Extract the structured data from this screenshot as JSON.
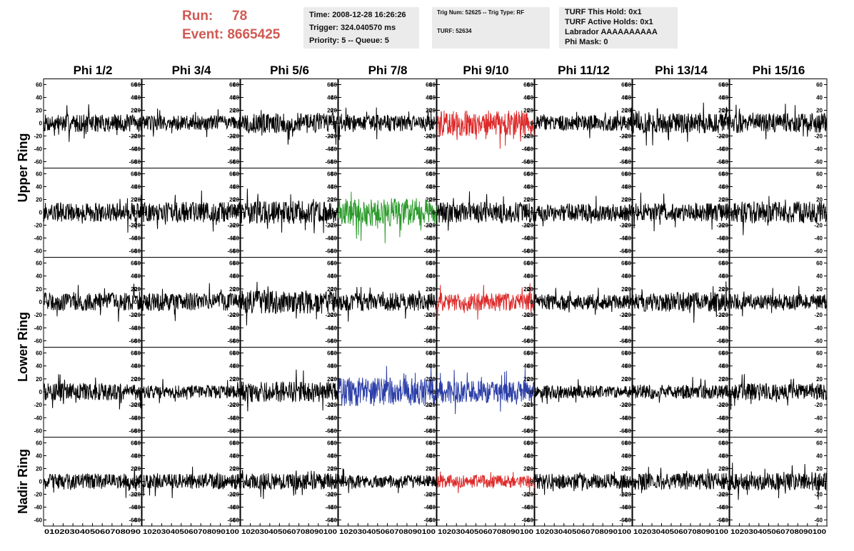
{
  "header": {
    "run_label": "Run:",
    "run_value": "78",
    "event_label": "Event:",
    "event_value": "8665425",
    "time": "Time: 2008-12-28 16:26:26",
    "trigger": "Trigger: 324.040570 ms",
    "priority": "Priority: 5 -- Queue: 5",
    "trig_num": "Trig Num: 52625 -- Trig Type: RF",
    "turf": "TURF: 52634",
    "turf_this_hold": "TURF This Hold: 0x1",
    "turf_active_holds": "TURF Active Holds: 0x1",
    "labrador": "Labrador AAAAAAAAAA",
    "phi_mask": "Phi Mask: 0",
    "colors": {
      "run_text": "#d05a52",
      "info_box_bg": "#ebebeb"
    }
  },
  "chart_data": {
    "type": "line",
    "title": "",
    "columns": [
      "Phi 1/2",
      "Phi 3/4",
      "Phi 5/6",
      "Phi 7/8",
      "Phi 9/10",
      "Phi 11/12",
      "Phi 13/14",
      "Phi 15/16"
    ],
    "rows": [
      "Upper Ring",
      "Upper Ring",
      "Lower Ring",
      "Lower Ring",
      "Nadir Ring"
    ],
    "row_labels": [
      {
        "text": "Upper Ring",
        "rows": [
          0,
          1
        ]
      },
      {
        "text": "Lower Ring",
        "rows": [
          2,
          3
        ]
      },
      {
        "text": "Nadir Ring",
        "rows": [
          4
        ]
      }
    ],
    "x_axis": {
      "range": [
        0,
        100
      ],
      "ticks": [
        0,
        10,
        20,
        30,
        40,
        50,
        60,
        70,
        80,
        90,
        100
      ]
    },
    "x_tick_label_rows": [
      "0102030405060708090",
      "102030405060708090100",
      "102030405060708090100",
      "102030405060708090100",
      "102030405060708090100",
      "102030405060708090100",
      "102030405060708090100",
      "102030405060708090100"
    ],
    "y_axis": {
      "range": [
        -65,
        65
      ],
      "ticks": [
        -60,
        -40,
        -20,
        0,
        20,
        40,
        60
      ]
    },
    "grid": false,
    "colors": {
      "default": "#000000",
      "red": "#dd2a2a",
      "green": "#2a9a2a",
      "blue": "#2c3fa8"
    },
    "panel_colors": [
      [
        "default",
        "default",
        "default",
        "default",
        "red",
        "default",
        "default",
        "default"
      ],
      [
        "default",
        "default",
        "default",
        "green",
        "default",
        "default",
        "default",
        "default"
      ],
      [
        "default",
        "default",
        "default",
        "default",
        "red",
        "default",
        "default",
        "default"
      ],
      [
        "default",
        "default",
        "default",
        "blue",
        "blue",
        "default",
        "default",
        "default"
      ],
      [
        "default",
        "default",
        "default",
        "default",
        "red",
        "default",
        "default",
        "default"
      ]
    ],
    "waveform_amplitude": [
      [
        14,
        12,
        16,
        13,
        20,
        12,
        16,
        15
      ],
      [
        15,
        16,
        18,
        22,
        16,
        14,
        14,
        17
      ],
      [
        14,
        14,
        18,
        14,
        14,
        12,
        15,
        12
      ],
      [
        13,
        10,
        16,
        22,
        17,
        10,
        11,
        13
      ],
      [
        12,
        12,
        13,
        10,
        10,
        12,
        13,
        14
      ]
    ]
  }
}
